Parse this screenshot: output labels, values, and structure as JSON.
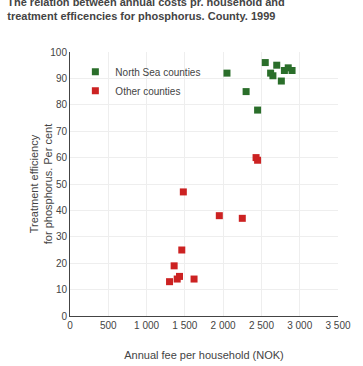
{
  "chart_data": {
    "type": "scatter",
    "title": "The relation between annual costs pr. household and\ntreatment efficencies for phosphorus. County. 1999",
    "xlabel": "Annual fee per household (NOK)",
    "ylabel": "Treatment efficiency\nfor phosphorus. Per cent",
    "series": [
      {
        "name": "North Sea counties",
        "color": "#2a6e2a",
        "marker": "square",
        "x": [
          2050,
          2300,
          2450,
          2550,
          2620,
          2650,
          2700,
          2760,
          2800,
          2850,
          2900
        ],
        "values": [
          92,
          85,
          78,
          96,
          92,
          91,
          95,
          89,
          93,
          94,
          93
        ]
      },
      {
        "name": "Other counties",
        "color": "#cc2222",
        "marker": "square",
        "x": [
          1300,
          1360,
          1400,
          1430,
          1460,
          1480,
          1620,
          1950,
          2250,
          2430,
          2450
        ],
        "values": [
          13,
          19,
          14,
          15,
          25,
          47,
          14,
          38,
          37,
          60,
          59
        ]
      }
    ],
    "xlim": [
      0,
      3500
    ],
    "ylim": [
      0,
      100
    ],
    "xticks": [
      0,
      500,
      {
        "value": 1000,
        "label": "1 000"
      },
      {
        "value": 1500,
        "label": "1 500"
      },
      {
        "value": 2000,
        "label": "2 000"
      },
      {
        "value": 2500,
        "label": "2 500"
      },
      {
        "value": 3000,
        "label": "3 000"
      },
      {
        "value": 3500,
        "label": "3 500"
      }
    ],
    "yticks": [
      0,
      10,
      20,
      30,
      40,
      50,
      60,
      70,
      80,
      90,
      100
    ],
    "grid": true,
    "legend": "upper left"
  }
}
